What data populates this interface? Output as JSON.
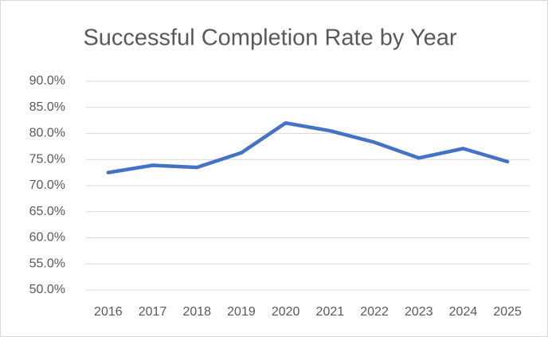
{
  "chart_data": {
    "type": "line",
    "title": "Successful Completion Rate by Year",
    "categories": [
      "2016",
      "2017",
      "2018",
      "2019",
      "2020",
      "2021",
      "2022",
      "2023",
      "2024",
      "2025"
    ],
    "values": [
      72.5,
      73.9,
      73.5,
      76.3,
      82.0,
      80.5,
      78.3,
      75.3,
      77.1,
      74.6
    ],
    "color": "#4472c4",
    "ylim": [
      50,
      90
    ],
    "yticks": [
      {
        "value": 50,
        "label": "50.0%"
      },
      {
        "value": 55,
        "label": "55.0%"
      },
      {
        "value": 60,
        "label": "60.0%"
      },
      {
        "value": 65,
        "label": "65.0%"
      },
      {
        "value": 70,
        "label": "70.0%"
      },
      {
        "value": 75,
        "label": "75.0%"
      },
      {
        "value": 80,
        "label": "80.0%"
      },
      {
        "value": 85,
        "label": "85.0%"
      },
      {
        "value": 90,
        "label": "90.0%"
      }
    ],
    "grid": true
  }
}
